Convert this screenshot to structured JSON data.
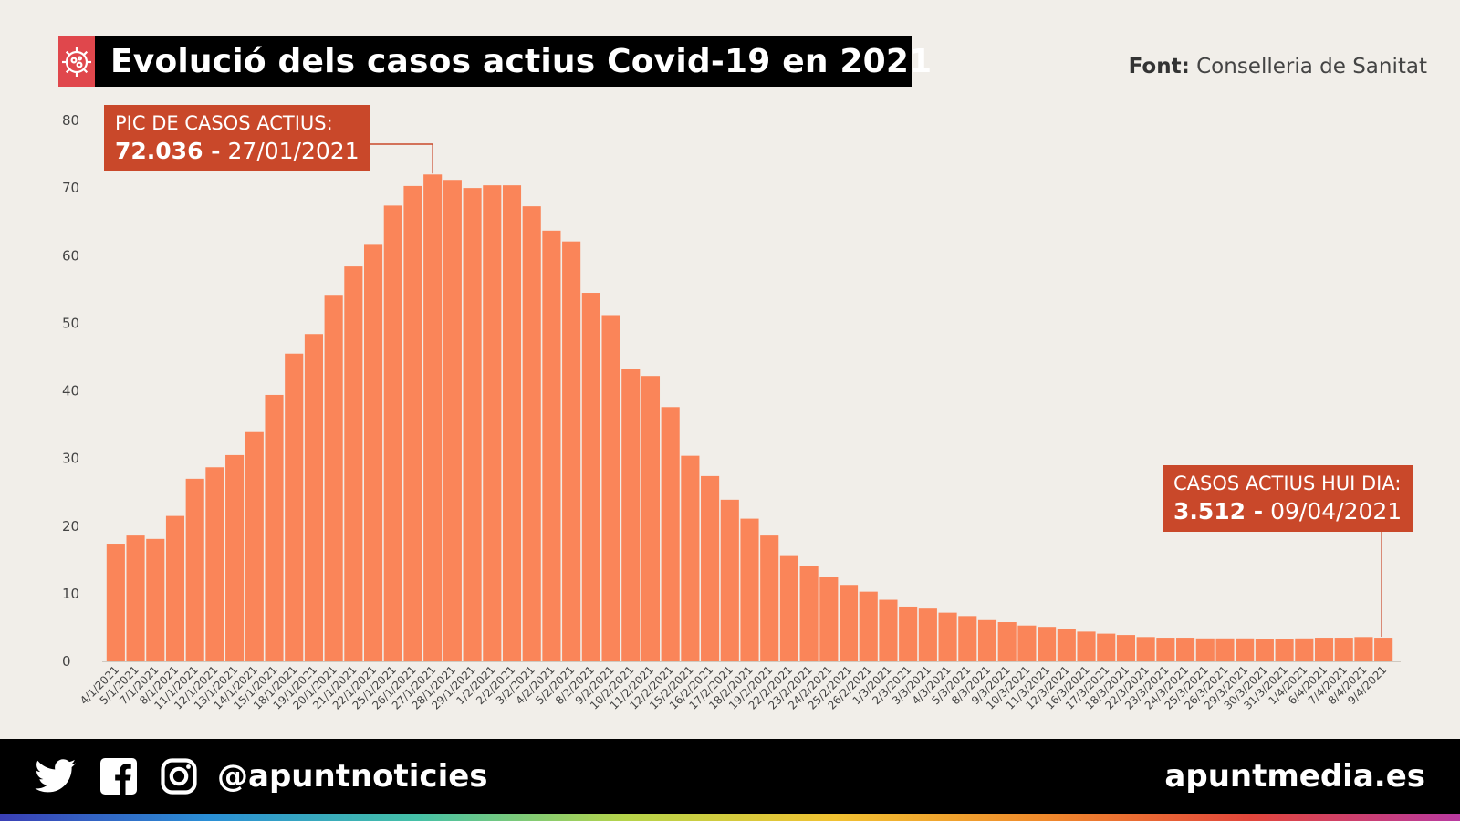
{
  "header": {
    "title": "Evolució dels casos actius Covid-19 en 2021",
    "source_label": "Font:",
    "source_value": "Conselleria de Sanitat"
  },
  "annotations": {
    "peak": {
      "line1": "PIC DE CASOS ACTIUS:",
      "value": "72.036 -",
      "date": "27/01/2021"
    },
    "today": {
      "line1": "CASOS ACTIUS HUI DIA:",
      "value": "3.512 -",
      "date": "09/04/2021"
    }
  },
  "footer": {
    "handle": "@apuntnoticies",
    "site": "apuntmedia.es"
  },
  "icons": [
    "virus-icon",
    "twitter-icon",
    "facebook-icon",
    "instagram-icon"
  ],
  "colors": {
    "bar": "#fa8559",
    "annotation": "#c9482a",
    "title_icon": "#e0474c"
  },
  "chart_data": {
    "type": "bar",
    "categories": [
      "4/1/2021",
      "5/1/2021",
      "7/1/2021",
      "8/1/2021",
      "11/1/2021",
      "12/1/2021",
      "13/1/2021",
      "14/1/2021",
      "15/1/2021",
      "18/1/2021",
      "19/1/2021",
      "20/1/2021",
      "21/1/2021",
      "22/1/2021",
      "25/1/2021",
      "26/1/2021",
      "27/1/2021",
      "28/1/2021",
      "29/1/2021",
      "1/2/2021",
      "2/2/2021",
      "3/2/2021",
      "4/2/2021",
      "5/2/2021",
      "8/2/2021",
      "9/2/2021",
      "10/2/2021",
      "11/2/2021",
      "12/2/2021",
      "15/2/2021",
      "16/2/2021",
      "17/2/2021",
      "18/2/2021",
      "19/2/2021",
      "22/2/2021",
      "23/2/2021",
      "24/2/2021",
      "25/2/2021",
      "26/2/2021",
      "1/3/2021",
      "2/3/2021",
      "3/3/2021",
      "4/3/2021",
      "5/3/2021",
      "8/3/2021",
      "9/3/2021",
      "10/3/2021",
      "11/3/2021",
      "12/3/2021",
      "16/3/2021",
      "17/3/2021",
      "18/3/2021",
      "22/3/2021",
      "23/3/2021",
      "24/3/2021",
      "25/3/2021",
      "26/3/2021",
      "29/3/2021",
      "30/3/2021",
      "31/3/2021",
      "1/4/2021",
      "6/4/2021",
      "7/4/2021",
      "8/4/2021",
      "9/4/2021"
    ],
    "values": [
      17.4,
      18.6,
      18.1,
      21.5,
      27.0,
      28.7,
      30.5,
      33.9,
      39.4,
      45.5,
      48.4,
      54.2,
      58.4,
      61.6,
      67.4,
      70.3,
      72.0,
      71.2,
      70.0,
      70.4,
      70.4,
      67.3,
      63.7,
      62.1,
      54.5,
      51.2,
      43.2,
      42.2,
      37.6,
      30.4,
      27.4,
      23.9,
      21.1,
      18.6,
      15.7,
      14.1,
      12.5,
      11.3,
      10.3,
      9.1,
      8.1,
      7.8,
      7.2,
      6.7,
      6.1,
      5.8,
      5.3,
      5.1,
      4.8,
      4.4,
      4.1,
      3.9,
      3.6,
      3.5,
      3.5,
      3.4,
      3.4,
      3.4,
      3.3,
      3.3,
      3.4,
      3.5,
      3.5,
      3.6,
      3.5
    ],
    "yticks": [
      0,
      10,
      20,
      30,
      40,
      50,
      60,
      70,
      80
    ],
    "ylim": [
      0,
      80
    ],
    "unit": "thousands of active cases",
    "grid": false,
    "legend": "none"
  }
}
